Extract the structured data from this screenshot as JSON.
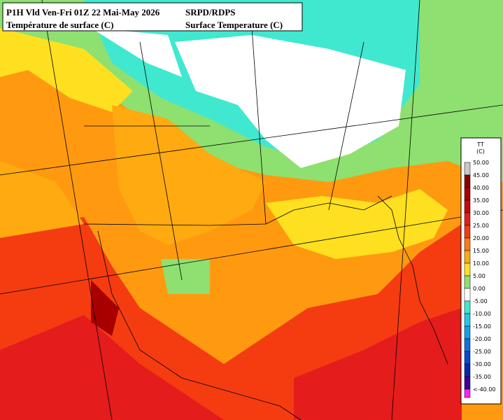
{
  "header": {
    "line1_left": "P1H Vld Ven-Fri 01Z 22 Mai-May 2026",
    "line1_right": "SRPD/RDPS",
    "line2_left": "Température de surface (C)",
    "line2_right": "Surface Temperature (C)"
  },
  "legend": {
    "title": "TT",
    "unit": "(C)",
    "items": [
      {
        "label": "50.00",
        "color": "#c8c8c8"
      },
      {
        "label": "45.00",
        "color": "#8c0000"
      },
      {
        "label": "40.00",
        "color": "#a80000"
      },
      {
        "label": "35.00",
        "color": "#c80808"
      },
      {
        "label": "30.00",
        "color": "#e41c1c"
      },
      {
        "label": "25.00",
        "color": "#f43c10"
      },
      {
        "label": "20.00",
        "color": "#ff7a10"
      },
      {
        "label": "15.00",
        "color": "#ffaa10"
      },
      {
        "label": "10.00",
        "color": "#ffe020"
      },
      {
        "label": "5.00",
        "color": "#8ee070"
      },
      {
        "label": "0.00",
        "color": "#ffffff"
      },
      {
        "label": "-5.00",
        "color": "#40e8d0"
      },
      {
        "label": "-10.00",
        "color": "#20c8e8"
      },
      {
        "label": "-15.00",
        "color": "#10a0e8"
      },
      {
        "label": "-20.00",
        "color": "#1070e0"
      },
      {
        "label": "-25.00",
        "color": "#0848d0"
      },
      {
        "label": "-30.00",
        "color": "#0428b0"
      },
      {
        "label": "-35.00",
        "color": "#3c0098"
      },
      {
        "label": "<-40.00",
        "color": "#ff20ff"
      }
    ]
  }
}
